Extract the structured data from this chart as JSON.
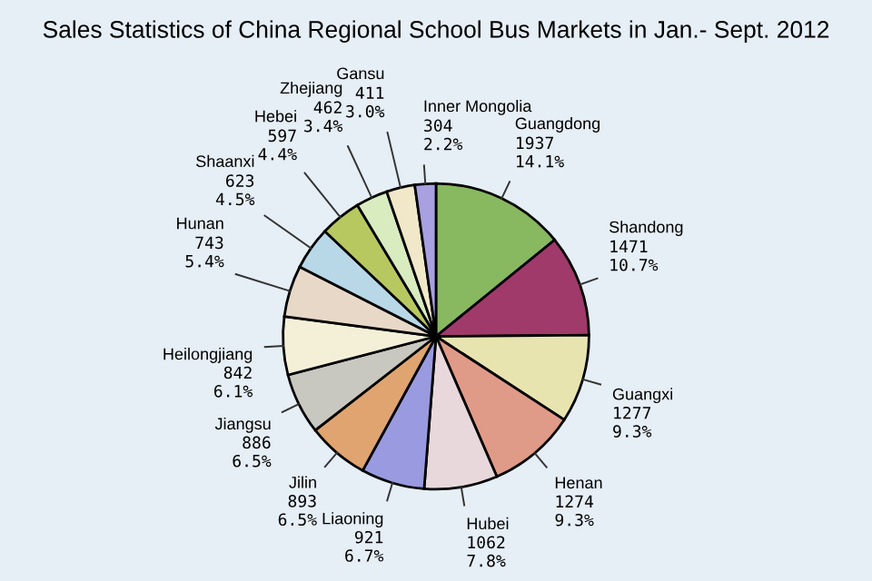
{
  "chart_data": {
    "type": "pie",
    "title": "Sales Statistics of China Regional School Bus Markets in Jan.- Sept. 2012",
    "categories": [
      "Guangdong",
      "Shandong",
      "Guangxi",
      "Henan",
      "Hubei",
      "Liaoning",
      "Jilin",
      "Jiangsu",
      "Heilongjiang",
      "Hunan",
      "Shaanxi",
      "Hebei",
      "Zhejiang",
      "Gansu",
      "Inner Mongolia"
    ],
    "values": [
      1937,
      1471,
      1277,
      1274,
      1062,
      921,
      893,
      886,
      842,
      743,
      623,
      597,
      462,
      411,
      304
    ],
    "value_labels": [
      "1937\n14.1%",
      "1471\n10.7%",
      "1277\n9.3%",
      "1274\n9.3%",
      "1062\n7.8%",
      "921\n6.7%",
      "893\n6.5%",
      "886\n6.5%",
      "842\n6.1%",
      "743\n5.4%",
      "623\n4.5%",
      "597\n4.4%",
      "462\n3.4%",
      "411\n3.0%",
      "304\n2.2%"
    ],
    "colors": [
      "#88b860",
      "#a03a6a",
      "#e8e4b0",
      "#e09a88",
      "#e8d8dc",
      "#9a9ae0",
      "#e0a470",
      "#c8c8c0",
      "#f4f0d8",
      "#e8d8c8",
      "#b8d8e8",
      "#b8c860",
      "#d8ecc0",
      "#f0e8c8",
      "#a8a0e0"
    ],
    "legend": false
  }
}
